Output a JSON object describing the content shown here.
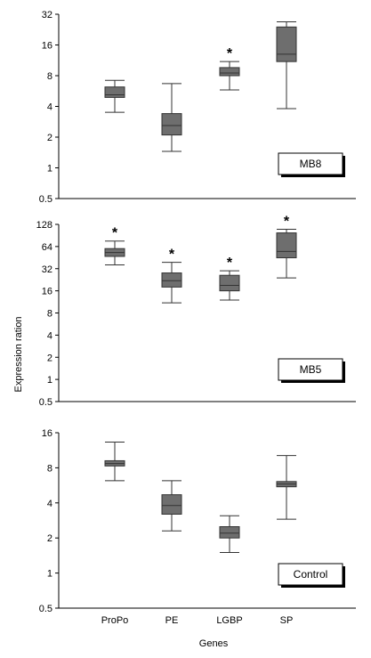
{
  "chart_data": [
    {
      "type": "box",
      "panel_label": "MB8",
      "yscale": "log2",
      "ylim": [
        0.5,
        32
      ],
      "yticks": [
        "0.5",
        "1",
        "2",
        "4",
        "8",
        "16",
        "32"
      ],
      "categories": [
        "ProPo",
        "PE",
        "LGBP",
        "SP"
      ],
      "boxes": [
        {
          "category": "ProPo",
          "whisker_low": 3.5,
          "q1": 4.9,
          "median": 5.2,
          "q3": 6.2,
          "whisker_high": 7.2,
          "significant": false
        },
        {
          "category": "PE",
          "whisker_low": 1.45,
          "q1": 2.1,
          "median": 2.6,
          "q3": 3.4,
          "whisker_high": 6.7,
          "significant": false
        },
        {
          "category": "LGBP",
          "whisker_low": 5.8,
          "q1": 8.0,
          "median": 8.5,
          "q3": 9.6,
          "whisker_high": 11.0,
          "significant": true
        },
        {
          "category": "SP",
          "whisker_low": 3.8,
          "q1": 11.0,
          "median": 13.0,
          "q3": 24.0,
          "whisker_high": 27.0,
          "significant": false
        }
      ]
    },
    {
      "type": "box",
      "panel_label": "MB5",
      "yscale": "log2",
      "ylim": [
        0.5,
        128
      ],
      "yticks": [
        "0.5",
        "1",
        "2",
        "4",
        "8",
        "16",
        "32",
        "64",
        "128"
      ],
      "categories": [
        "ProPo",
        "PE",
        "LGBP",
        "SP"
      ],
      "boxes": [
        {
          "category": "ProPo",
          "whisker_low": 36,
          "q1": 47,
          "median": 53,
          "q3": 60,
          "whisker_high": 76,
          "significant": true
        },
        {
          "category": "PE",
          "whisker_low": 11,
          "q1": 18,
          "median": 22,
          "q3": 28,
          "whisker_high": 39,
          "significant": true
        },
        {
          "category": "LGBP",
          "whisker_low": 12,
          "q1": 16,
          "median": 19,
          "q3": 26,
          "whisker_high": 30,
          "significant": true
        },
        {
          "category": "SP",
          "whisker_low": 24,
          "q1": 45,
          "median": 55,
          "q3": 98,
          "whisker_high": 110,
          "significant": true
        }
      ]
    },
    {
      "type": "box",
      "panel_label": "Control",
      "yscale": "log2",
      "ylim": [
        0.5,
        16
      ],
      "yticks": [
        "0.5",
        "1",
        "2",
        "4",
        "8",
        "16"
      ],
      "categories": [
        "ProPo",
        "PE",
        "LGBP",
        "SP"
      ],
      "boxes": [
        {
          "category": "ProPo",
          "whisker_low": 6.2,
          "q1": 8.3,
          "median": 8.7,
          "q3": 9.2,
          "whisker_high": 13.3,
          "significant": false
        },
        {
          "category": "PE",
          "whisker_low": 2.3,
          "q1": 3.2,
          "median": 3.8,
          "q3": 4.7,
          "whisker_high": 6.2,
          "significant": false
        },
        {
          "category": "LGBP",
          "whisker_low": 1.5,
          "q1": 2.0,
          "median": 2.2,
          "q3": 2.5,
          "whisker_high": 3.1,
          "significant": false
        },
        {
          "category": "SP",
          "whisker_low": 2.9,
          "q1": 5.5,
          "median": 5.8,
          "q3": 6.1,
          "whisker_high": 10.2,
          "significant": false
        }
      ]
    }
  ],
  "ylabel": "Expression ration",
  "xlabel": "Genes",
  "significance_marker": "*",
  "colors": {
    "box_fill": "#6e6e6e",
    "box_stroke": "#333333",
    "whisker": "#333333",
    "axis": "#000000",
    "label_shadow": "#000000"
  }
}
